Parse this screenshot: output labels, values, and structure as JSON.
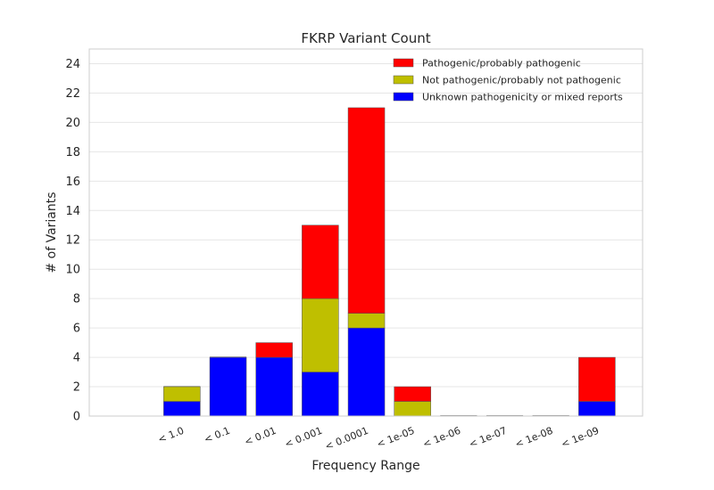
{
  "chart_data": {
    "type": "bar",
    "stacked": true,
    "title": "FKRP Variant Count",
    "xlabel": "Frequency Range",
    "ylabel": "# of Variants",
    "categories": [
      "< 1.0",
      "< 0.1",
      "< 0.01",
      "< 0.001",
      "< 0.0001",
      "< 1e-05",
      "< 1e-06",
      "< 1e-07",
      "< 1e-08",
      "< 1e-09"
    ],
    "ylim": [
      0,
      25
    ],
    "yticks": [
      0,
      2,
      4,
      6,
      8,
      10,
      12,
      14,
      16,
      18,
      20,
      22,
      24
    ],
    "grid": true,
    "legend_position": "top-right",
    "series": [
      {
        "name": "Unknown pathogenicity or mixed reports",
        "color": "#0000ff",
        "values": [
          1,
          4,
          4,
          3,
          6,
          0,
          0,
          0,
          0,
          1
        ]
      },
      {
        "name": "Not pathogenic/probably not pathogenic",
        "color": "#bfbf00",
        "values": [
          1,
          0,
          0,
          5,
          1,
          1,
          0,
          0,
          0,
          0
        ]
      },
      {
        "name": "Pathogenic/probably pathogenic",
        "color": "#ff0000",
        "values": [
          0,
          0,
          1,
          5,
          14,
          1,
          0,
          0,
          0,
          3
        ]
      }
    ],
    "legend_order": [
      "Pathogenic/probably pathogenic",
      "Not pathogenic/probably not pathogenic",
      "Unknown pathogenicity or mixed reports"
    ]
  }
}
